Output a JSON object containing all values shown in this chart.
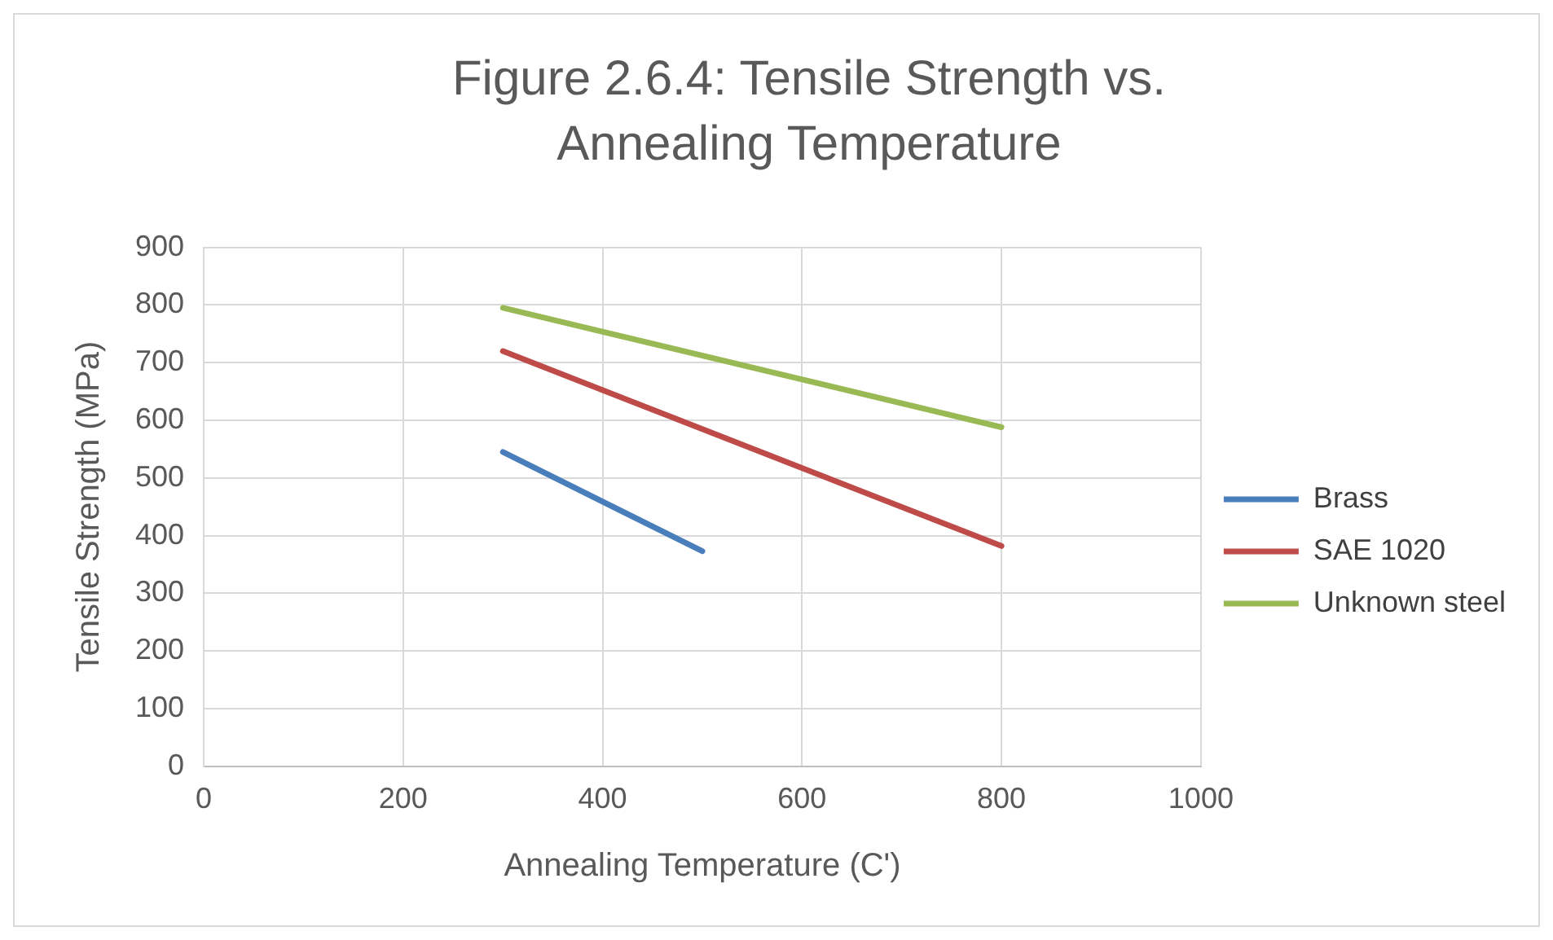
{
  "chart_data": {
    "type": "line",
    "title": "Figure 2.6.4: Tensile Strength vs. Annealing Temperature",
    "xlabel": "Annealing Temperature (C')",
    "ylabel": "Tensile Strength (MPa)",
    "xlim": [
      0,
      1000
    ],
    "xticks": [
      0,
      200,
      400,
      600,
      800,
      1000
    ],
    "ylim": [
      0,
      900
    ],
    "yticks": [
      0,
      100,
      200,
      300,
      400,
      500,
      600,
      700,
      800,
      900
    ],
    "grid": true,
    "legend": "right",
    "marker": "none",
    "series": [
      {
        "name": "Brass",
        "color": "#4a7ebb",
        "x": [
          300,
          500
        ],
        "values": [
          545,
          373
        ]
      },
      {
        "name": "SAE 1020",
        "color": "#be4b48",
        "x": [
          300,
          800
        ],
        "values": [
          720,
          382
        ]
      },
      {
        "name": "Unknown steel",
        "color": "#98b954",
        "x": [
          300,
          800
        ],
        "values": [
          795,
          588
        ]
      }
    ]
  }
}
